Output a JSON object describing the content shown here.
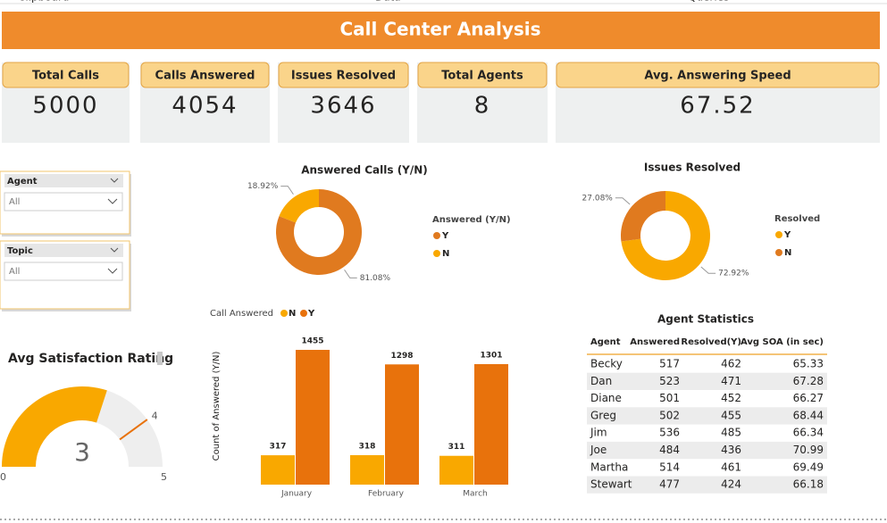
{
  "ribbon": [
    "Clipboard",
    "Data",
    "Queries"
  ],
  "header": {
    "title": "Call Center Analysis"
  },
  "kpis": [
    {
      "label": "Total Calls",
      "value": 5000
    },
    {
      "label": "Calls Answered",
      "value": 4054
    },
    {
      "label": "Issues Resolved",
      "value": 3646
    },
    {
      "label": "Total Agents",
      "value": 8
    },
    {
      "label": "Avg. Answering Speed",
      "value": 67.52
    }
  ],
  "slicers": [
    {
      "label": "Agent",
      "value": "All"
    },
    {
      "label": "Topic",
      "value": "All"
    }
  ],
  "chart_data": [
    {
      "type": "donut",
      "title": "Answered Calls (Y/N)",
      "legend_title": "Answered (Y/N)",
      "categories": [
        "Y",
        "N"
      ],
      "values": [
        81.08,
        18.92
      ],
      "value_labels": [
        "81.08%",
        "18.92%"
      ],
      "colors": [
        "#e07a1f",
        "#f9a800"
      ]
    },
    {
      "type": "donut",
      "title": "Issues Resolved",
      "legend_title": "Resolved",
      "categories": [
        "Y",
        "N"
      ],
      "values": [
        72.92,
        27.08
      ],
      "value_labels": [
        "72.92%",
        "27.08%"
      ],
      "colors": [
        "#f9a800",
        "#e07a1f"
      ]
    },
    {
      "type": "bar",
      "legend_title": "Call Answered",
      "y_label": "Count of Answered (Y/N)",
      "categories": [
        "January",
        "February",
        "March"
      ],
      "series": [
        {
          "name": "N",
          "color": "#f9a800",
          "values": [
            317,
            318,
            311
          ]
        },
        {
          "name": "Y",
          "color": "#e8720c",
          "values": [
            1455,
            1298,
            1301
          ]
        }
      ]
    },
    {
      "type": "gauge",
      "title": "Avg Satisfaction Rating",
      "value": 3,
      "min": 0,
      "max": 5,
      "target": 4,
      "color": "#f9a800",
      "track_color": "#eeeeee",
      "target_color": "#e8720c"
    }
  ],
  "table": {
    "title": "Agent Statistics",
    "columns": [
      "Agent",
      "Answered",
      "Resolved(Y)",
      "Avg SOA (in sec)"
    ],
    "rows": [
      [
        "Becky",
        517,
        462,
        65.33
      ],
      [
        "Dan",
        523,
        471,
        67.28
      ],
      [
        "Diane",
        501,
        452,
        66.27
      ],
      [
        "Greg",
        502,
        455,
        68.44
      ],
      [
        "Jim",
        536,
        485,
        66.34
      ],
      [
        "Joe",
        484,
        436,
        70.99
      ],
      [
        "Martha",
        514,
        461,
        69.49
      ],
      [
        "Stewart",
        477,
        424,
        66.18
      ]
    ]
  }
}
